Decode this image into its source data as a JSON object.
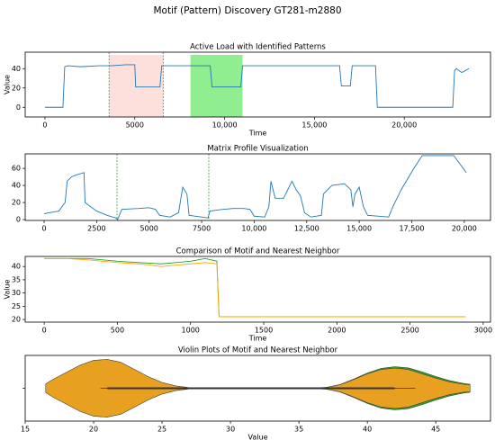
{
  "title": "Motif (Pattern) Discovery GT281-m2880",
  "chart_data": [
    {
      "type": "line",
      "title": "Active Load with Identified Patterns",
      "xlabel": "Time",
      "ylabel": "Value",
      "x": [
        0,
        1000,
        1100,
        1300,
        2000,
        3000,
        3700,
        4500,
        5000,
        5050,
        6400,
        6500,
        7500,
        9200,
        9300,
        10900,
        11000,
        13000,
        16400,
        16500,
        17000,
        17100,
        18400,
        18500,
        22700,
        22800,
        22900,
        23200,
        23600
      ],
      "series": [
        {
          "color": "#1f77b4",
          "values": [
            0,
            0,
            42,
            43,
            42,
            43,
            43,
            44,
            44,
            21,
            21,
            43,
            43,
            43,
            21,
            21,
            43,
            43,
            43,
            22,
            22,
            43,
            43,
            0,
            0,
            38,
            40,
            36,
            40
          ]
        }
      ],
      "spans": [
        {
          "x": [
            3570,
            6580
          ],
          "color": "#fde0dc"
        },
        {
          "x": [
            8100,
            11000
          ],
          "color": "#90ee90"
        }
      ],
      "vlines": [
        3570,
        6580
      ],
      "vline_color": "#2ca02c",
      "xlim": [
        -1100,
        24800
      ],
      "ylim": [
        -10,
        57
      ],
      "xticks": [
        0,
        5000,
        {
          "value": 10000,
          "label": "10,000"
        },
        {
          "value": 15000,
          "label": "15,000"
        },
        {
          "value": 20000,
          "label": "20,000"
        }
      ],
      "yticks": [
        0,
        20,
        40
      ]
    },
    {
      "type": "line",
      "title": "Matrix Profile Visualization",
      "x": [
        0,
        700,
        1000,
        1100,
        1300,
        1500,
        1900,
        1950,
        2500,
        3000,
        3400,
        3500,
        3700,
        4500,
        5000,
        5300,
        5500,
        6000,
        6400,
        6600,
        6800,
        6900,
        7500,
        7800,
        7900,
        8500,
        9000,
        9500,
        9800,
        10000,
        10500,
        10700,
        10800,
        11000,
        11400,
        11600,
        11800,
        12000,
        12200,
        12400,
        12700,
        13200,
        13300,
        13700,
        14300,
        14600,
        14700,
        14800,
        15000,
        15200,
        15400,
        16400,
        16600,
        17000,
        17600,
        18000,
        19000,
        19500,
        19800,
        20100
      ],
      "series": [
        {
          "color": "#1f77b4",
          "values": [
            7,
            10,
            20,
            45,
            50,
            52,
            55,
            20,
            10,
            5,
            2,
            0,
            12,
            13,
            14,
            12,
            5,
            3,
            8,
            38,
            30,
            5,
            3,
            2,
            10,
            12,
            13,
            13,
            12,
            4,
            3,
            15,
            45,
            25,
            25,
            35,
            45,
            35,
            28,
            8,
            3,
            5,
            30,
            40,
            42,
            35,
            15,
            30,
            38,
            15,
            5,
            3,
            15,
            35,
            60,
            75,
            75,
            75,
            65,
            55
          ]
        }
      ],
      "vlines": [
        3470,
        7840
      ],
      "vline_color": "#2ca02c",
      "xlim": [
        -900,
        21250
      ],
      "ylim": [
        -1,
        77
      ],
      "xticks": [
        0,
        2500,
        5000,
        7500,
        {
          "value": 10000,
          "label": "10,000"
        },
        {
          "value": 12500,
          "label": "12,500"
        },
        {
          "value": 15000,
          "label": "15,000"
        },
        {
          "value": 17500,
          "label": "17,500"
        },
        {
          "value": 20000,
          "label": "20,000"
        }
      ],
      "yticks": [
        0,
        20,
        40,
        60
      ]
    },
    {
      "type": "line",
      "title": "Comparison of Motif and Nearest Neighbor",
      "xlabel": "Time",
      "ylabel": "Value",
      "x": [
        0,
        150,
        300,
        400,
        500,
        650,
        800,
        900,
        1000,
        1100,
        1180,
        1195,
        1300,
        2000,
        2880
      ],
      "series": [
        {
          "color": "#2ca02c",
          "values": [
            43,
            43,
            43,
            42.5,
            42,
            41.5,
            41,
            41.5,
            42,
            43,
            42,
            21,
            21,
            21,
            21
          ]
        },
        {
          "color": "#ffa500",
          "values": [
            43,
            43,
            42.5,
            42,
            41.5,
            41,
            40,
            40.5,
            41,
            41.5,
            41,
            21,
            21,
            21,
            21
          ]
        }
      ],
      "xlim": [
        -130,
        3050
      ],
      "ylim": [
        19,
        43.8
      ],
      "xticks": [
        0,
        500,
        1000,
        1500,
        2000,
        2500,
        3000
      ],
      "yticks": [
        20,
        25,
        30,
        35,
        40
      ]
    },
    {
      "type": "violin",
      "title": "Violin Plots of Motif and Nearest Neighbor",
      "xlabel": "Value",
      "x": [
        16.5,
        17,
        18,
        19,
        20,
        21,
        22,
        23,
        24,
        25,
        26,
        27,
        30,
        35,
        37,
        38,
        39,
        40,
        41,
        42,
        43,
        44,
        45,
        46,
        47,
        47.5
      ],
      "series": [
        {
          "color": "#2ca02c",
          "values": [
            0.15,
            0.3,
            0.55,
            0.8,
            0.97,
            1.0,
            0.9,
            0.65,
            0.4,
            0.2,
            0.08,
            0.02,
            0.0,
            0.0,
            0.03,
            0.13,
            0.32,
            0.53,
            0.69,
            0.75,
            0.71,
            0.57,
            0.41,
            0.27,
            0.17,
            0.14
          ]
        },
        {
          "color": "#e8a020",
          "values": [
            0.15,
            0.3,
            0.55,
            0.8,
            0.97,
            1.0,
            0.9,
            0.65,
            0.4,
            0.2,
            0.08,
            0.02,
            0.0,
            0.0,
            0.03,
            0.12,
            0.3,
            0.5,
            0.65,
            0.7,
            0.65,
            0.5,
            0.35,
            0.22,
            0.14,
            0.12
          ]
        }
      ],
      "whiskers": [
        20.5,
        43.5
      ],
      "quartiles": [
        21,
        42
      ],
      "xlim": [
        15,
        49
      ],
      "xticks": [
        15,
        20,
        25,
        30,
        35,
        40,
        45
      ]
    }
  ]
}
